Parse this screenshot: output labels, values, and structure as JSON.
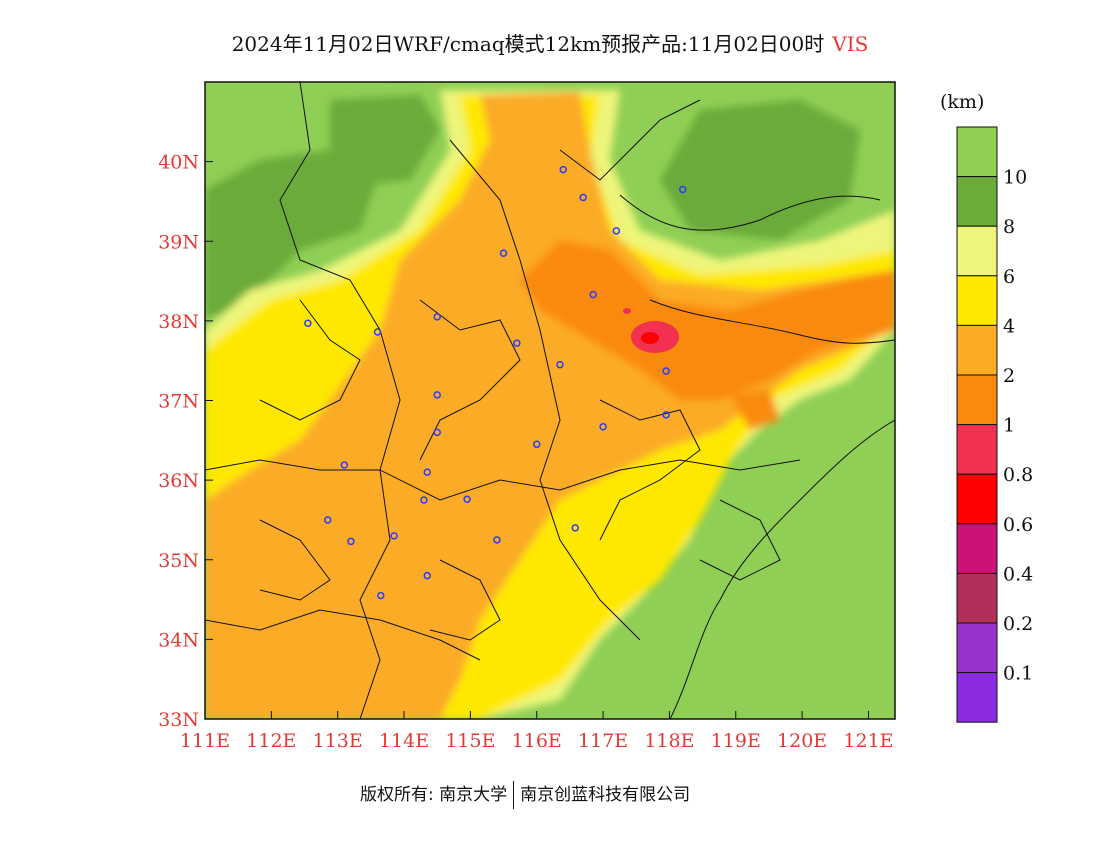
{
  "title": {
    "text": "2024年11月02日WRF/cmaq模式12km预报产品:11月02日00时",
    "variable": "VIS"
  },
  "map": {
    "lon_range": [
      111,
      121.4
    ],
    "lat_range": [
      33,
      41
    ],
    "lon_ticks": [
      "111E",
      "112E",
      "113E",
      "114E",
      "115E",
      "116E",
      "117E",
      "118E",
      "119E",
      "120E",
      "121E"
    ],
    "lat_ticks": [
      "33N",
      "34N",
      "35N",
      "36N",
      "37N",
      "38N",
      "39N",
      "40N"
    ],
    "colors": {
      "gt10": "#8fcf55",
      "v8_10": "#6aab3a",
      "v6_8": "#eef57a",
      "v4_6": "#ffe800",
      "v2_4": "#fbab25",
      "v1_2": "#f98a10",
      "v08_1": "#f2304f",
      "v06_08": "#ff0000",
      "station": "#2a3cff"
    },
    "stations": [
      {
        "lon": 116.4,
        "lat": 39.9
      },
      {
        "lon": 116.7,
        "lat": 39.55
      },
      {
        "lon": 117.2,
        "lat": 39.13
      },
      {
        "lon": 118.2,
        "lat": 39.65
      },
      {
        "lon": 115.5,
        "lat": 38.85
      },
      {
        "lon": 116.85,
        "lat": 38.33
      },
      {
        "lon": 114.5,
        "lat": 38.05
      },
      {
        "lon": 113.6,
        "lat": 37.86
      },
      {
        "lon": 112.55,
        "lat": 37.97
      },
      {
        "lon": 115.7,
        "lat": 37.72
      },
      {
        "lon": 116.35,
        "lat": 37.45
      },
      {
        "lon": 117.95,
        "lat": 37.37
      },
      {
        "lon": 114.5,
        "lat": 37.07
      },
      {
        "lon": 117.95,
        "lat": 36.82
      },
      {
        "lon": 117.0,
        "lat": 36.67
      },
      {
        "lon": 114.5,
        "lat": 36.6
      },
      {
        "lon": 116.0,
        "lat": 36.45
      },
      {
        "lon": 113.1,
        "lat": 36.19
      },
      {
        "lon": 114.35,
        "lat": 36.1
      },
      {
        "lon": 114.3,
        "lat": 35.75
      },
      {
        "lon": 114.95,
        "lat": 35.76
      },
      {
        "lon": 112.85,
        "lat": 35.5
      },
      {
        "lon": 113.85,
        "lat": 35.3
      },
      {
        "lon": 113.2,
        "lat": 35.23
      },
      {
        "lon": 115.4,
        "lat": 35.25
      },
      {
        "lon": 116.58,
        "lat": 35.4
      },
      {
        "lon": 114.35,
        "lat": 34.8
      },
      {
        "lon": 113.65,
        "lat": 34.55
      }
    ]
  },
  "legend": {
    "unit": "(km)",
    "labels": [
      "10",
      "8",
      "6",
      "4",
      "2",
      "1",
      "0.8",
      "0.6",
      "0.4",
      "0.2",
      "0.1"
    ],
    "colors": [
      "#8fcf55",
      "#6aab3a",
      "#eef57a",
      "#ffe800",
      "#fbab25",
      "#f98a10",
      "#f2304f",
      "#ff0000",
      "#cc1177",
      "#b0305a",
      "#9933cc",
      "#8a2be2"
    ]
  },
  "footer": {
    "copyright": "版权所有: 南京大学",
    "company": "南京创蓝科技有限公司"
  }
}
